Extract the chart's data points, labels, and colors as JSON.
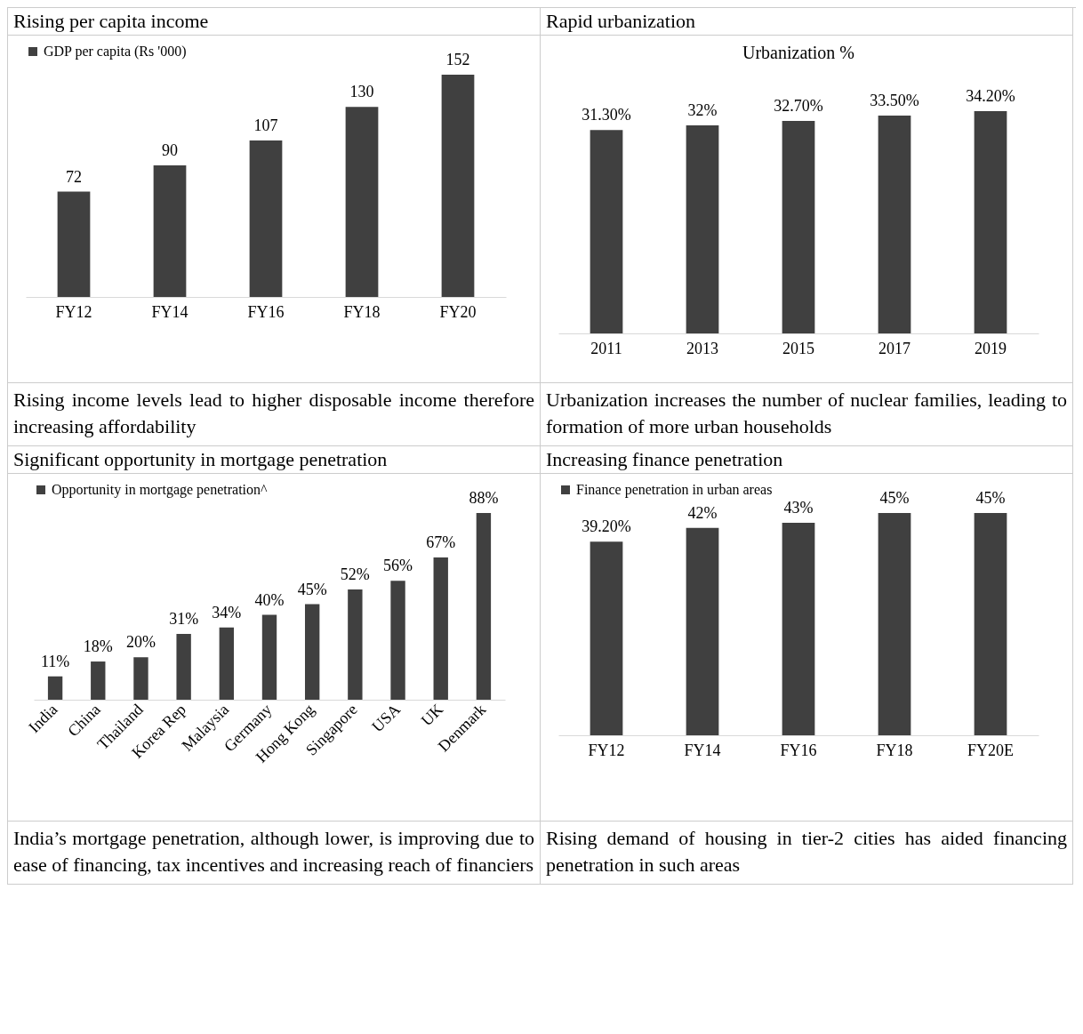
{
  "chart_data": [
    {
      "type": "bar",
      "title": "Rising per capita income",
      "categories": [
        "FY12",
        "FY14",
        "FY16",
        "FY18",
        "FY20"
      ],
      "series": [
        {
          "name": "GDP per capita (Rs '000)",
          "color": "#404040",
          "values": [
            72,
            90,
            107,
            130,
            152
          ]
        }
      ],
      "data_labels": true,
      "legend": "top",
      "grid": false,
      "annotations": [
        "Rising income levels lead to higher disposable income therefore increasing affordability"
      ]
    },
    {
      "type": "bar",
      "title": "Rapid urbanization",
      "subtitle": "Urbanization %",
      "categories": [
        "2011",
        "2013",
        "2015",
        "2017",
        "2019"
      ],
      "series": [
        {
          "color": "#404040",
          "values": [
            31.3,
            32,
            32.7,
            33.5,
            34.2
          ],
          "value_labels": [
            "31.30%",
            "32%",
            "32.70%",
            "33.50%",
            "34.20%"
          ]
        }
      ],
      "grid": false,
      "annotations": [
        "Urbanization increases the number of nuclear families, leading to formation of more urban households"
      ]
    },
    {
      "type": "bar",
      "title": "Significant opportunity in mortgage penetration",
      "categories": [
        "India",
        "China",
        "Thailand",
        "Korea Rep",
        "Malaysia",
        "Germany",
        "Hong Kong",
        "Singapore",
        "USA",
        "UK",
        "Denmark"
      ],
      "series": [
        {
          "name": "Opportunity in mortgage penetration^",
          "color": "#404040",
          "values": [
            11,
            18,
            20,
            31,
            34,
            40,
            45,
            52,
            56,
            67,
            88
          ],
          "value_labels": [
            "11%",
            "18%",
            "20%",
            "31%",
            "34%",
            "40%",
            "45%",
            "52%",
            "56%",
            "67%",
            "88%"
          ]
        }
      ],
      "legend": "top",
      "grid": false,
      "annotations": [
        "India’s mortgage penetration, although lower, is improving due to ease of financing, tax incentives and increasing reach of financiers"
      ]
    },
    {
      "type": "bar",
      "title": "Increasing finance penetration",
      "categories": [
        "FY12",
        "FY14",
        "FY16",
        "FY18",
        "FY20E"
      ],
      "series": [
        {
          "name": "Finance penetration in urban areas",
          "color": "#404040",
          "values": [
            39.2,
            42,
            43,
            45,
            45
          ],
          "value_labels": [
            "39.20%",
            "42%",
            "43%",
            "45%",
            "45%"
          ]
        }
      ],
      "legend": "top",
      "grid": false,
      "annotations": [
        "Rising demand of housing in tier-2 cities has aided financing penetration in such areas"
      ]
    }
  ]
}
